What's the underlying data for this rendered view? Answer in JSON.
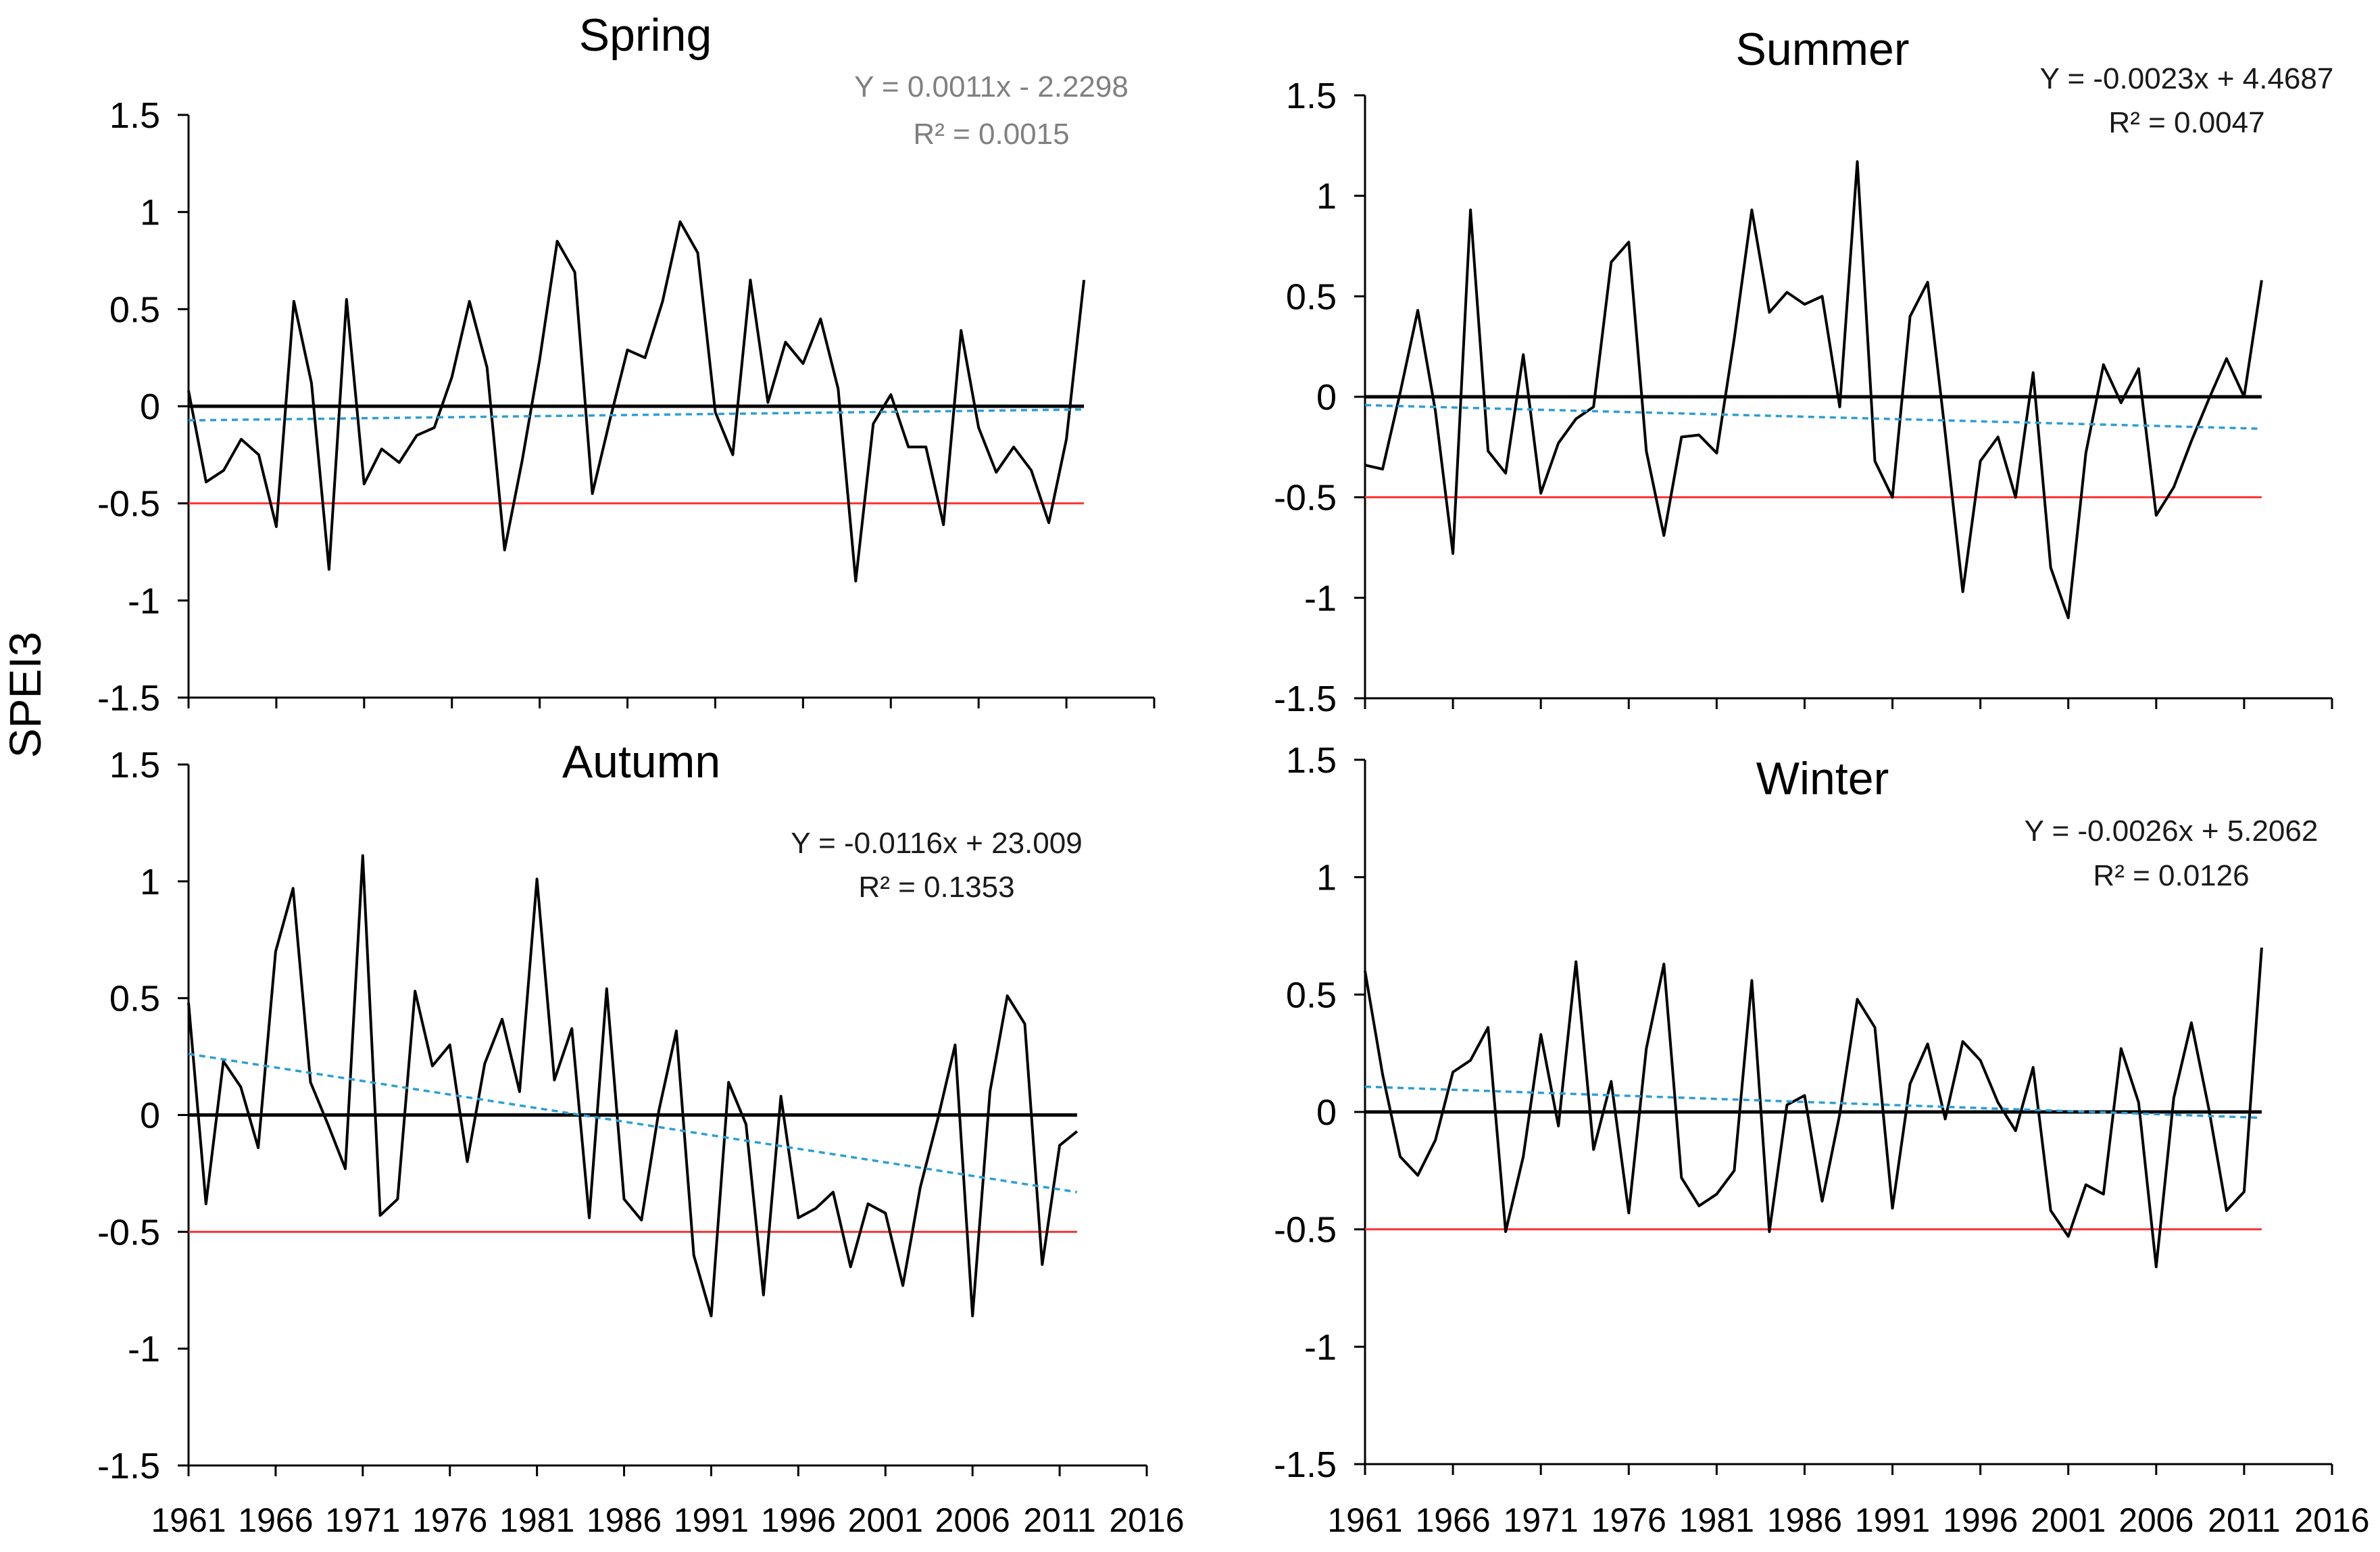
{
  "figure": {
    "ylabel": "SPEI3"
  },
  "colors": {
    "series": "#000000",
    "zero_line": "#000000",
    "threshold": "#ff3333",
    "trend": "#2a9fd6",
    "equation_spring": "#808080",
    "equation_default": "#1a1a1a"
  },
  "chart_data": [
    {
      "type": "line",
      "title": "Spring",
      "xlabel": "",
      "ylabel": "SPEI3",
      "xlim": [
        1961,
        2016
      ],
      "ylim": [
        -1.5,
        1.5
      ],
      "xticks": [
        1961,
        1966,
        1971,
        1976,
        1981,
        1986,
        1991,
        1996,
        2001,
        2006,
        2011,
        2016
      ],
      "xtick_labels": [],
      "yticks": [
        1.5,
        1,
        0.5,
        0,
        -0.5,
        -1,
        -1.5
      ],
      "ytick_labels": [
        "1.5",
        "1",
        "0.5",
        "0",
        "-0.5",
        "-1",
        "-1.5"
      ],
      "equation": "Y = 0.0011x - 2.2298",
      "r2": "R² = 0.0015",
      "equation_style": "spring",
      "zero_line": 0,
      "threshold": -0.5,
      "trend": {
        "slope": 0.0011,
        "intercept": -2.2298
      },
      "x": [
        1961,
        1962,
        1963,
        1964,
        1965,
        1966,
        1967,
        1968,
        1969,
        1970,
        1971,
        1972,
        1973,
        1974,
        1975,
        1976,
        1977,
        1978,
        1979,
        1980,
        1981,
        1982,
        1983,
        1984,
        1985,
        1986,
        1987,
        1988,
        1989,
        1990,
        1991,
        1992,
        1993,
        1994,
        1995,
        1996,
        1997,
        1998,
        1999,
        2000,
        2001,
        2002,
        2003,
        2004,
        2005,
        2006,
        2007,
        2008,
        2009,
        2010,
        2011,
        2012
      ],
      "values": [
        0.08,
        -0.39,
        -0.33,
        -0.17,
        -0.25,
        -0.62,
        0.54,
        0.12,
        -0.84,
        0.55,
        -0.4,
        -0.22,
        -0.29,
        -0.15,
        -0.11,
        0.15,
        0.54,
        0.2,
        -0.74,
        -0.28,
        0.24,
        0.85,
        0.69,
        -0.45,
        -0.07,
        0.29,
        0.25,
        0.54,
        0.95,
        0.79,
        -0.03,
        -0.25,
        0.65,
        0.02,
        0.33,
        0.22,
        0.45,
        0.09,
        -0.9,
        -0.09,
        0.06,
        -0.21,
        -0.21,
        -0.61,
        0.39,
        -0.11,
        -0.34,
        -0.21,
        -0.33,
        -0.6,
        -0.17,
        0.65
      ]
    },
    {
      "type": "line",
      "title": "Summer",
      "xlabel": "",
      "ylabel": "",
      "xlim": [
        1961,
        2016
      ],
      "ylim": [
        -1.5,
        1.5
      ],
      "xticks": [
        1961,
        1966,
        1971,
        1976,
        1981,
        1986,
        1991,
        1996,
        2001,
        2006,
        2011,
        2016
      ],
      "xtick_labels": [],
      "yticks": [
        1.5,
        1,
        0.5,
        0,
        -0.5,
        -1,
        -1.5
      ],
      "ytick_labels": [
        "1.5",
        "1",
        "0.5",
        "0",
        "-0.5",
        "-1",
        "-1.5"
      ],
      "equation": "Y = -0.0023x + 4.4687",
      "r2": "R² = 0.0047",
      "equation_style": "default",
      "zero_line": 0,
      "threshold": -0.5,
      "trend": {
        "slope": -0.0023,
        "intercept": 4.4687
      },
      "x": [
        1961,
        1962,
        1963,
        1964,
        1965,
        1966,
        1967,
        1968,
        1969,
        1970,
        1971,
        1972,
        1973,
        1974,
        1975,
        1976,
        1977,
        1978,
        1979,
        1980,
        1981,
        1982,
        1983,
        1984,
        1985,
        1986,
        1987,
        1988,
        1989,
        1990,
        1991,
        1992,
        1993,
        1994,
        1995,
        1996,
        1997,
        1998,
        1999,
        2000,
        2001,
        2002,
        2003,
        2004,
        2005,
        2006,
        2007,
        2008,
        2009,
        2010,
        2011,
        2012
      ],
      "values": [
        -0.34,
        -0.36,
        0.02,
        0.43,
        -0.07,
        -0.78,
        0.93,
        -0.27,
        -0.38,
        0.21,
        -0.48,
        -0.23,
        -0.11,
        -0.05,
        0.67,
        0.77,
        -0.27,
        -0.69,
        -0.2,
        -0.19,
        -0.28,
        0.29,
        0.93,
        0.42,
        0.52,
        0.46,
        0.5,
        -0.05,
        1.17,
        -0.32,
        -0.5,
        0.4,
        0.57,
        -0.18,
        -0.97,
        -0.32,
        -0.2,
        -0.5,
        0.12,
        -0.85,
        -1.1,
        -0.28,
        0.16,
        -0.03,
        0.14,
        -0.59,
        -0.45,
        -0.22,
        -0.01,
        0.19,
        0.0,
        0.58
      ]
    },
    {
      "type": "line",
      "title": "Autumn",
      "xlabel": "",
      "ylabel": "SPEI3",
      "xlim": [
        1961,
        2016
      ],
      "ylim": [
        -1.5,
        1.5
      ],
      "xticks": [
        1961,
        1966,
        1971,
        1976,
        1981,
        1986,
        1991,
        1996,
        2001,
        2006,
        2011,
        2016
      ],
      "xtick_labels": [
        "1961",
        "1966",
        "1971",
        "1976",
        "1981",
        "1986",
        "1991",
        "1996",
        "2001",
        "2006",
        "2011",
        "2016"
      ],
      "yticks": [
        1.5,
        1,
        0.5,
        0,
        -0.5,
        -1,
        -1.5
      ],
      "ytick_labels": [
        "1.5",
        "1",
        "0.5",
        "0",
        "-0.5",
        "-1",
        "-1.5"
      ],
      "equation": "Y = -0.0116x + 23.009",
      "r2": "R² = 0.1353",
      "equation_style": "default",
      "zero_line": 0,
      "threshold": -0.5,
      "trend": {
        "slope": -0.0116,
        "intercept": 23.009
      },
      "x": [
        1961,
        1962,
        1963,
        1964,
        1965,
        1966,
        1967,
        1968,
        1969,
        1970,
        1971,
        1972,
        1973,
        1974,
        1975,
        1976,
        1977,
        1978,
        1979,
        1980,
        1981,
        1982,
        1983,
        1984,
        1985,
        1986,
        1987,
        1988,
        1989,
        1990,
        1991,
        1992,
        1993,
        1994,
        1995,
        1996,
        1997,
        1998,
        1999,
        2000,
        2001,
        2002,
        2003,
        2004,
        2005,
        2006,
        2007,
        2008,
        2009,
        2010,
        2011,
        2012
      ],
      "values": [
        0.48,
        -0.38,
        0.23,
        0.12,
        -0.14,
        0.7,
        0.97,
        0.14,
        -0.04,
        -0.23,
        1.11,
        -0.43,
        -0.36,
        0.53,
        0.21,
        0.3,
        -0.2,
        0.22,
        0.41,
        0.1,
        1.01,
        0.15,
        0.37,
        -0.44,
        0.54,
        -0.36,
        -0.45,
        0.02,
        0.36,
        -0.6,
        -0.86,
        0.14,
        -0.04,
        -0.77,
        0.08,
        -0.44,
        -0.4,
        -0.33,
        -0.65,
        -0.38,
        -0.42,
        -0.73,
        -0.31,
        -0.02,
        0.3,
        -0.86,
        0.1,
        0.51,
        0.39,
        -0.64,
        -0.13,
        -0.07
      ]
    },
    {
      "type": "line",
      "title": "Winter",
      "xlabel": "",
      "ylabel": "",
      "xlim": [
        1961,
        2016
      ],
      "ylim": [
        -1.5,
        1.5
      ],
      "xticks": [
        1961,
        1966,
        1971,
        1976,
        1981,
        1986,
        1991,
        1996,
        2001,
        2006,
        2011,
        2016
      ],
      "xtick_labels": [
        "1961",
        "1966",
        "1971",
        "1976",
        "1981",
        "1986",
        "1991",
        "1996",
        "2001",
        "2006",
        "2011",
        "2016"
      ],
      "yticks": [
        1.5,
        1,
        0.5,
        0,
        -0.5,
        -1,
        -1.5
      ],
      "ytick_labels": [
        "1.5",
        "1",
        "0.5",
        "0",
        "-0.5",
        "-1",
        "-1.5"
      ],
      "equation": "Y = -0.0026x + 5.2062",
      "r2": "R² = 0.0126",
      "equation_style": "default",
      "zero_line": 0,
      "threshold": -0.5,
      "trend": {
        "slope": -0.0026,
        "intercept": 5.2062
      },
      "x": [
        1961,
        1962,
        1963,
        1964,
        1965,
        1966,
        1967,
        1968,
        1969,
        1970,
        1971,
        1972,
        1973,
        1974,
        1975,
        1976,
        1977,
        1978,
        1979,
        1980,
        1981,
        1982,
        1983,
        1984,
        1985,
        1986,
        1987,
        1988,
        1989,
        1990,
        1991,
        1992,
        1993,
        1994,
        1995,
        1996,
        1997,
        1998,
        1999,
        2000,
        2001,
        2002,
        2003,
        2004,
        2005,
        2006,
        2007,
        2008,
        2009,
        2010,
        2011,
        2012
      ],
      "values": [
        0.6,
        0.16,
        -0.19,
        -0.27,
        -0.12,
        0.17,
        0.22,
        0.36,
        -0.51,
        -0.19,
        0.33,
        -0.06,
        0.64,
        -0.16,
        0.13,
        -0.43,
        0.27,
        0.63,
        -0.28,
        -0.4,
        -0.35,
        -0.25,
        0.56,
        -0.51,
        0.03,
        0.07,
        -0.38,
        -0.01,
        0.48,
        0.36,
        -0.41,
        0.12,
        0.29,
        -0.03,
        0.3,
        0.22,
        0.04,
        -0.08,
        0.19,
        -0.42,
        -0.53,
        -0.31,
        -0.35,
        0.27,
        0.04,
        -0.66,
        0.06,
        0.38,
        0.01,
        -0.42,
        -0.34,
        0.7
      ]
    }
  ]
}
